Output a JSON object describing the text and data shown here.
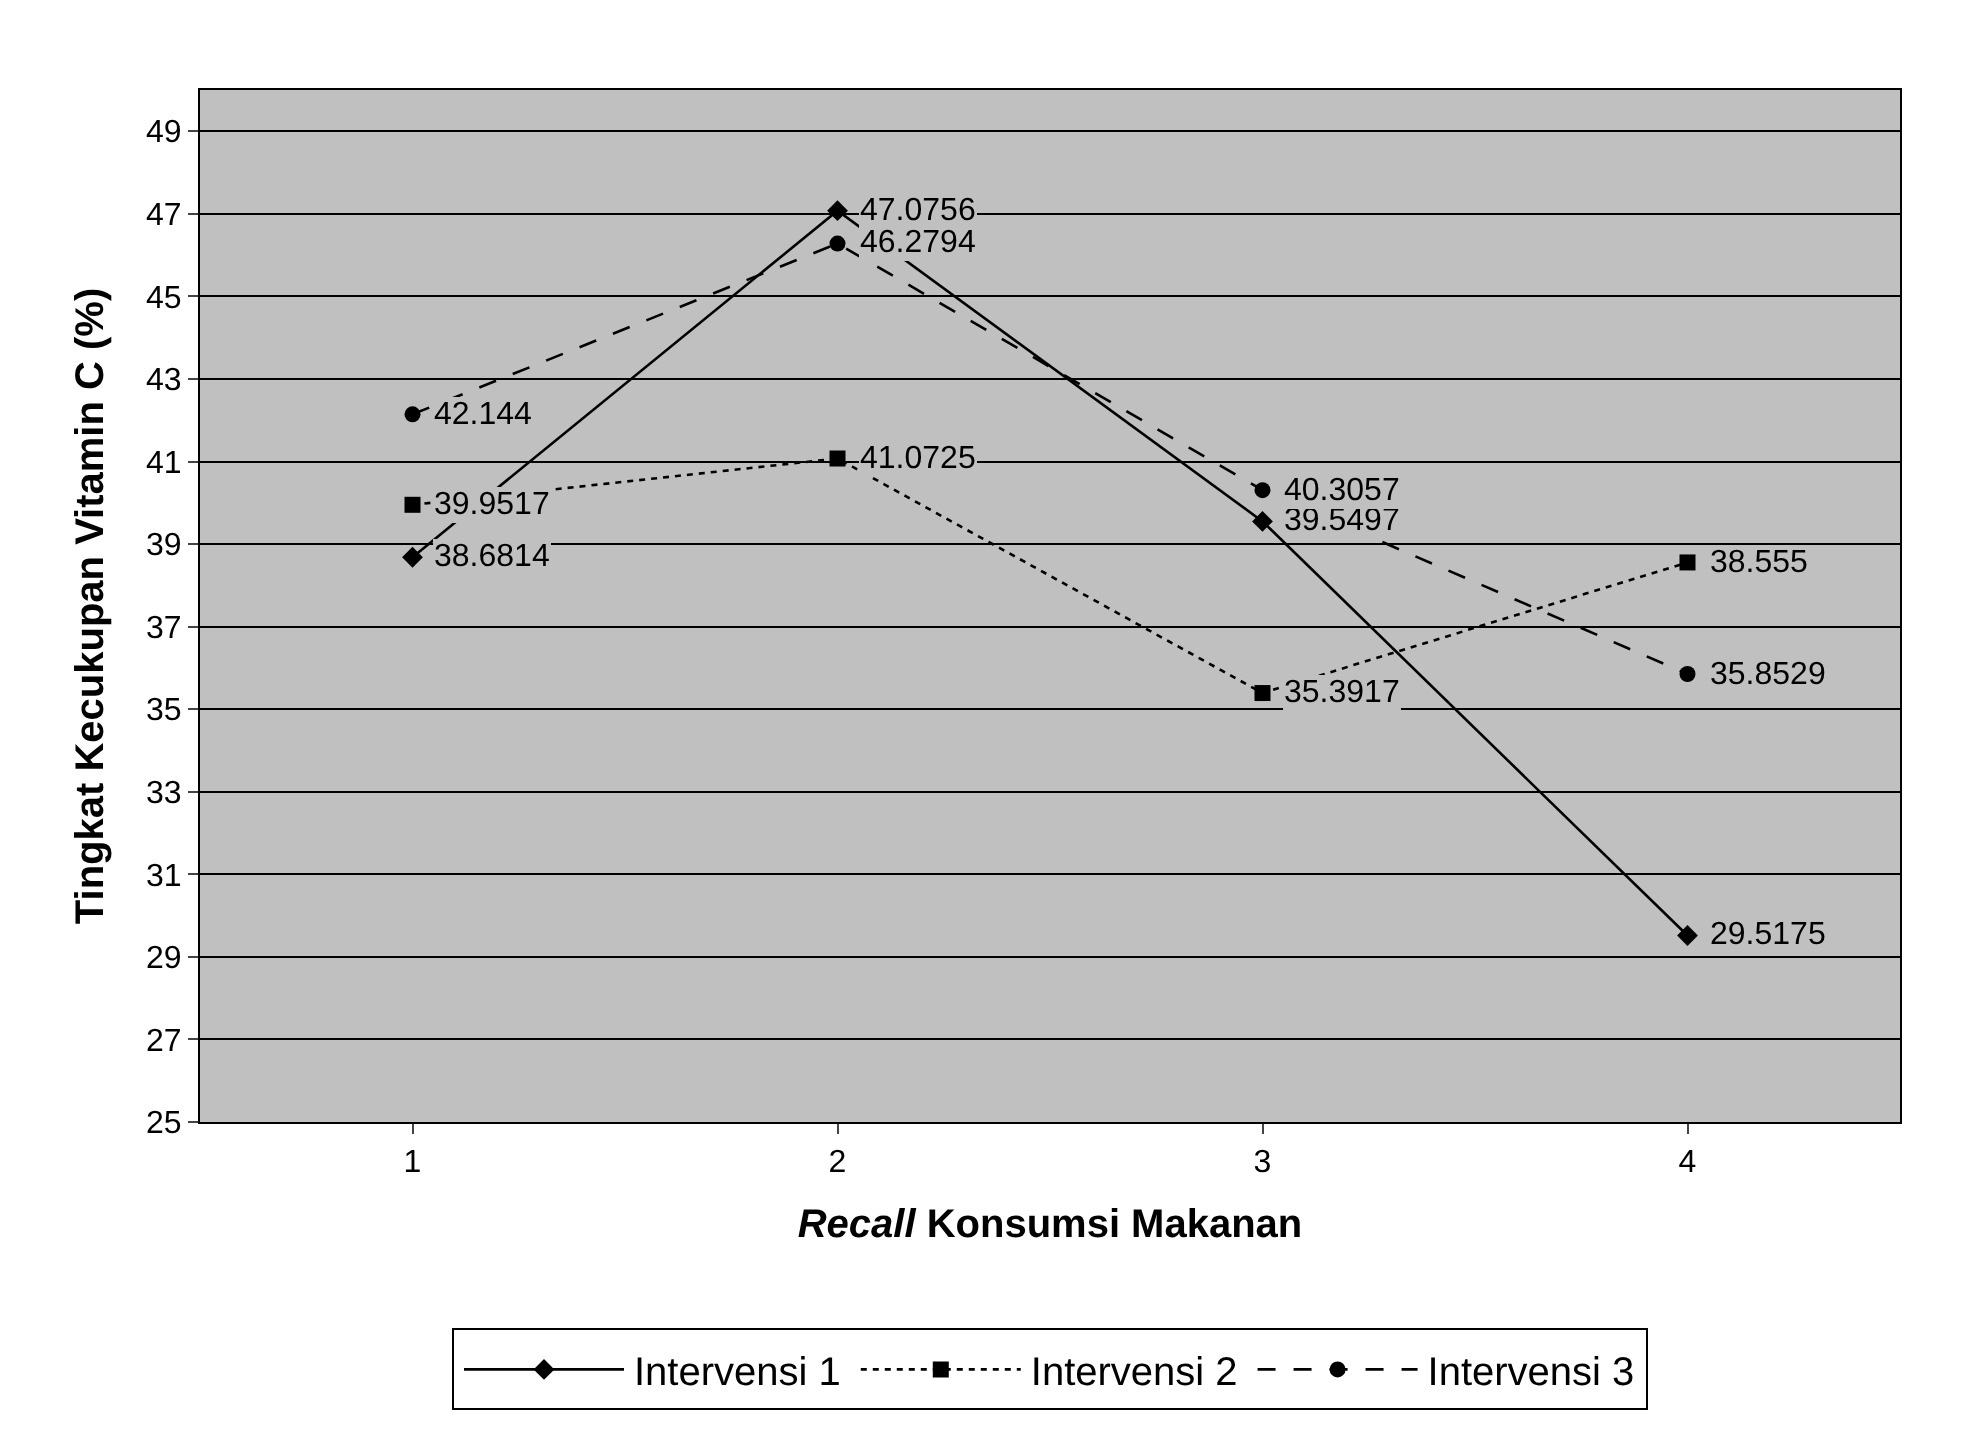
{
  "chart_data": {
    "type": "line",
    "xlabel": "Recall Konsumsi Makanan",
    "ylabel": "Tingkat Kecukupan Vitamin C (%)",
    "categories": [
      "1",
      "2",
      "3",
      "4"
    ],
    "series": [
      {
        "name": "Intervensi 1",
        "color": "#000000",
        "marker": "diamond",
        "line_style": "solid",
        "values": [
          38.6814,
          47.0756,
          39.5497,
          29.5175
        ]
      },
      {
        "name": "Intervensi 2",
        "color": "#000000",
        "marker": "square",
        "line_style": "dotted",
        "values": [
          39.9517,
          41.0725,
          35.3917,
          38.555
        ]
      },
      {
        "name": "Intervensi 3",
        "color": "#000000",
        "marker": "circle",
        "line_style": "dashed",
        "values": [
          42.144,
          46.2794,
          40.3057,
          35.8529
        ]
      }
    ],
    "ylim": [
      25,
      50
    ],
    "yticks": [
      25,
      27,
      29,
      31,
      33,
      35,
      37,
      39,
      41,
      43,
      45,
      47,
      49
    ],
    "grid": "y",
    "legend": "bottom",
    "data_labels": true
  }
}
